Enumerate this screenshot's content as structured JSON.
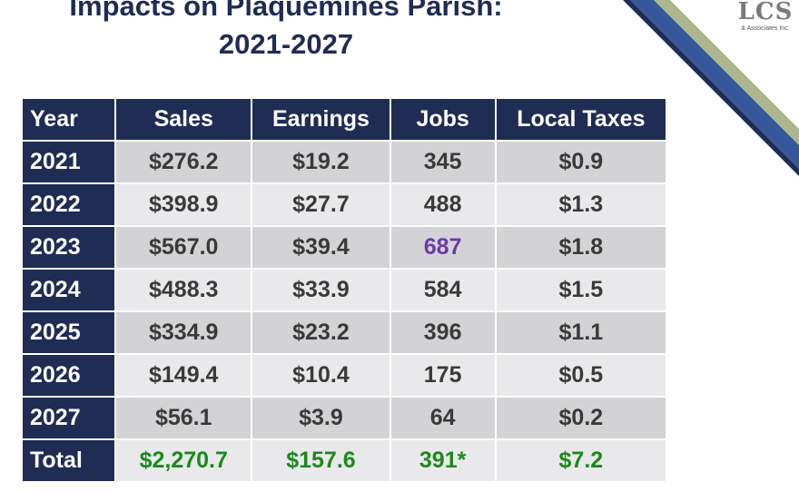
{
  "title": {
    "line1": "Impacts on Plaquemines Parish:",
    "line2": "2021-2027"
  },
  "logo": {
    "mark": "LCS",
    "subtitle": "& Associates Inc."
  },
  "colors": {
    "header_bg": "#1f2d54",
    "row_dark": "#d3d3d6",
    "row_light": "#e9e9eb",
    "highlight": "#6c3aa6",
    "total": "#1a8a1a"
  },
  "table": {
    "headers": [
      "Year",
      "Sales",
      "Earnings",
      "Jobs",
      "Local Taxes"
    ],
    "rows": [
      {
        "year": "2021",
        "sales": "$276.2",
        "earnings": "$19.2",
        "jobs": "345",
        "taxes": "$0.9"
      },
      {
        "year": "2022",
        "sales": "$398.9",
        "earnings": "$27.7",
        "jobs": "488",
        "taxes": "$1.3"
      },
      {
        "year": "2023",
        "sales": "$567.0",
        "earnings": "$39.4",
        "jobs": "687",
        "taxes": "$1.8"
      },
      {
        "year": "2024",
        "sales": "$488.3",
        "earnings": "$33.9",
        "jobs": "584",
        "taxes": "$1.5"
      },
      {
        "year": "2025",
        "sales": "$334.9",
        "earnings": "$23.2",
        "jobs": "396",
        "taxes": "$1.1"
      },
      {
        "year": "2026",
        "sales": "$149.4",
        "earnings": "$10.4",
        "jobs": "175",
        "taxes": "$0.5"
      },
      {
        "year": "2027",
        "sales": "$56.1",
        "earnings": "$3.9",
        "jobs": "64",
        "taxes": "$0.2"
      }
    ],
    "total": {
      "year": "Total",
      "sales": "$2,270.7",
      "earnings": "$157.6",
      "jobs": "391*",
      "taxes": "$7.2"
    }
  }
}
